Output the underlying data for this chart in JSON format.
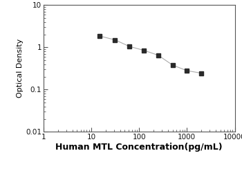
{
  "x_values": [
    15,
    31.25,
    62.5,
    125,
    250,
    500,
    1000,
    2000
  ],
  "y_values": [
    1.85,
    1.5,
    1.05,
    0.85,
    0.65,
    0.38,
    0.28,
    0.245
  ],
  "xlabel": "Human MTL Concentration(pg/mL)",
  "ylabel": "Optical Density",
  "xlim": [
    1,
    10000
  ],
  "ylim": [
    0.01,
    10
  ],
  "marker": "s",
  "marker_color": "#2a2a2a",
  "line_color": "#aaaaaa",
  "marker_size": 4,
  "line_width": 0.8,
  "xlabel_fontsize": 9,
  "ylabel_fontsize": 8,
  "tick_fontsize": 7.5,
  "background_color": "#ffffff"
}
